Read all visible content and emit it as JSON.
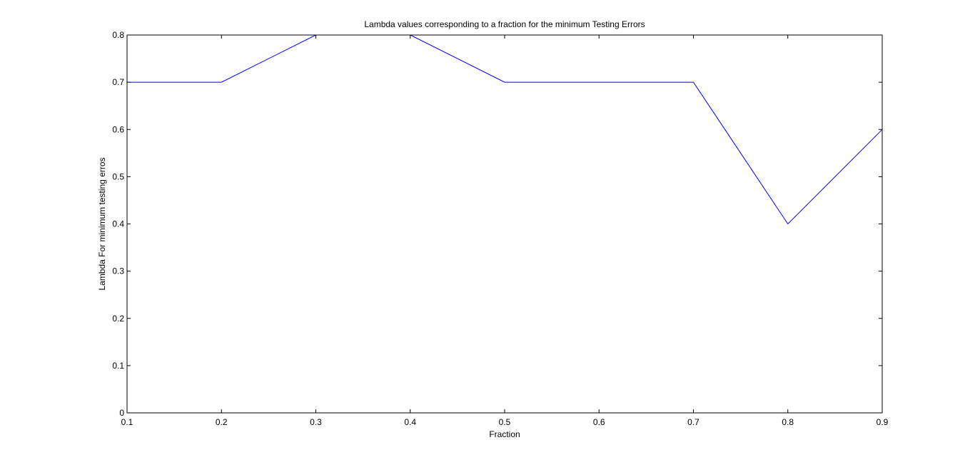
{
  "chart_data": {
    "type": "line",
    "title": "Lambda values corresponding to a fraction for the minimum Testing Errors",
    "xlabel": "Fraction",
    "ylabel": "Lambda For minimum testing erros",
    "x": [
      0.1,
      0.2,
      0.3,
      0.4,
      0.5,
      0.6,
      0.7,
      0.8,
      0.9
    ],
    "series": [
      {
        "values": [
          0.7,
          0.7,
          0.8,
          0.8,
          0.7,
          0.7,
          0.7,
          0.4,
          0.6
        ],
        "color": "#0000ff"
      }
    ],
    "xlim": [
      0.1,
      0.9
    ],
    "ylim": [
      0,
      0.8
    ],
    "xticks": [
      "0.1",
      "0.2",
      "0.3",
      "0.4",
      "0.5",
      "0.6",
      "0.7",
      "0.8",
      "0.9"
    ],
    "yticks": [
      "0",
      "0.1",
      "0.2",
      "0.3",
      "0.4",
      "0.5",
      "0.6",
      "0.7",
      "0.8"
    ],
    "grid": false,
    "legend": "none"
  }
}
